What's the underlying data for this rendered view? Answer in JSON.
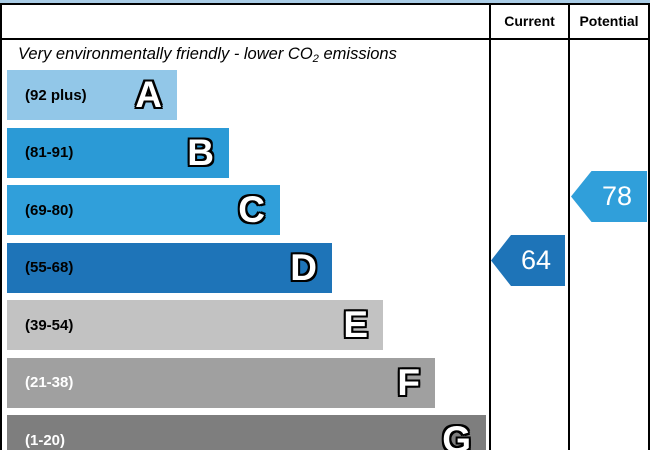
{
  "header": {
    "current_label": "Current",
    "potential_label": "Potential"
  },
  "title": {
    "text_before_sub": "Very environmentally friendly - lower CO",
    "sub": "2",
    "text_after_sub": " emissions"
  },
  "bands": [
    {
      "letter": "A",
      "range": "(92 plus)",
      "color": "#92c7e8",
      "label_color": "#000000"
    },
    {
      "letter": "B",
      "range": "(81-91)",
      "color": "#2b9ad6",
      "label_color": "#000000"
    },
    {
      "letter": "C",
      "range": "(69-80)",
      "color": "#309fda",
      "label_color": "#000000"
    },
    {
      "letter": "D",
      "range": "(55-68)",
      "color": "#1e74b8",
      "label_color": "#000000"
    },
    {
      "letter": "E",
      "range": "(39-54)",
      "color": "#c2c2c2",
      "label_color": "#000000"
    },
    {
      "letter": "F",
      "range": "(21-38)",
      "color": "#a0a0a0",
      "label_color": "#ffffff"
    },
    {
      "letter": "G",
      "range": "(1-20)",
      "color": "#7e7e7e",
      "label_color": "#ffffff"
    }
  ],
  "current": {
    "value": "64",
    "color": "#1e74b8",
    "band": "D"
  },
  "potential": {
    "value": "78",
    "color": "#309fda",
    "band": "C"
  },
  "accents": {
    "top_strip_color": "#a9cce6"
  },
  "chart_data": {
    "type": "bar",
    "title": "Very environmentally friendly - lower CO2 emissions",
    "columns": [
      "Current",
      "Potential"
    ],
    "bands": [
      {
        "letter": "A",
        "range": "92 plus"
      },
      {
        "letter": "B",
        "range": "81-91"
      },
      {
        "letter": "C",
        "range": "69-80"
      },
      {
        "letter": "D",
        "range": "55-68"
      },
      {
        "letter": "E",
        "range": "39-54"
      },
      {
        "letter": "F",
        "range": "21-38"
      },
      {
        "letter": "G",
        "range": "1-20"
      }
    ],
    "current": {
      "value": 64,
      "band": "D"
    },
    "potential": {
      "value": 78,
      "band": "C"
    }
  }
}
